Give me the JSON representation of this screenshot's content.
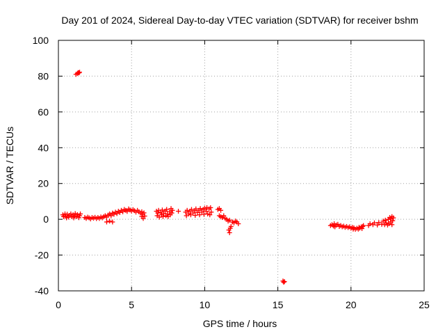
{
  "chart_data": {
    "type": "scatter",
    "title": "Day 201 of 2024, Sidereal Day-to-day VTEC variation (SDTVAR) for receiver bshm",
    "xlabel": "GPS time / hours",
    "ylabel": "SDTVAR / TECUs",
    "xlim": [
      0,
      25
    ],
    "ylim": [
      -40,
      100
    ],
    "xticks": [
      0,
      5,
      10,
      15,
      20,
      25
    ],
    "yticks": [
      -40,
      -20,
      0,
      20,
      40,
      60,
      80,
      100
    ],
    "grid": true,
    "marker": "plus",
    "series": [
      {
        "name": "SDTVAR",
        "color": "#ff0000",
        "points": [
          [
            1.2,
            81.0
          ],
          [
            1.3,
            81.5
          ],
          [
            1.35,
            82.0
          ],
          [
            1.4,
            81.8
          ],
          [
            1.45,
            82.2
          ],
          [
            0.3,
            2.5
          ],
          [
            0.35,
            1.5
          ],
          [
            0.45,
            3.0
          ],
          [
            0.5,
            1.8
          ],
          [
            0.55,
            0.8
          ],
          [
            0.6,
            2.8
          ],
          [
            0.7,
            1.2
          ],
          [
            0.75,
            2.2
          ],
          [
            0.85,
            3.0
          ],
          [
            0.9,
            1.5
          ],
          [
            1.0,
            2.5
          ],
          [
            1.05,
            0.8
          ],
          [
            1.1,
            1.8
          ],
          [
            1.15,
            3.2
          ],
          [
            1.25,
            1.5
          ],
          [
            1.3,
            2.6
          ],
          [
            1.4,
            0.9
          ],
          [
            1.45,
            2.0
          ],
          [
            1.5,
            3.0
          ],
          [
            1.8,
            1.0
          ],
          [
            1.9,
            0.5
          ],
          [
            2.0,
            1.2
          ],
          [
            2.1,
            0.8
          ],
          [
            2.2,
            0.2
          ],
          [
            2.3,
            1.0
          ],
          [
            2.4,
            0.6
          ],
          [
            2.5,
            1.1
          ],
          [
            2.6,
            0.4
          ],
          [
            2.7,
            1.0
          ],
          [
            2.8,
            0.5
          ],
          [
            2.9,
            1.3
          ],
          [
            3.0,
            0.8
          ],
          [
            3.1,
            1.5
          ],
          [
            3.2,
            2.0
          ],
          [
            3.3,
            1.2
          ],
          [
            3.3,
            -1.5
          ],
          [
            3.4,
            2.4
          ],
          [
            3.5,
            3.0
          ],
          [
            3.5,
            -1.0
          ],
          [
            3.6,
            2.0
          ],
          [
            3.7,
            3.5
          ],
          [
            3.7,
            -1.5
          ],
          [
            3.8,
            2.8
          ],
          [
            3.9,
            4.0
          ],
          [
            4.0,
            3.2
          ],
          [
            4.1,
            4.5
          ],
          [
            4.2,
            3.8
          ],
          [
            4.3,
            5.0
          ],
          [
            4.4,
            4.2
          ],
          [
            4.5,
            5.5
          ],
          [
            4.6,
            5.0
          ],
          [
            4.7,
            4.4
          ],
          [
            4.8,
            5.8
          ],
          [
            4.9,
            5.2
          ],
          [
            5.0,
            4.6
          ],
          [
            5.1,
            5.4
          ],
          [
            5.2,
            4.8
          ],
          [
            5.3,
            4.0
          ],
          [
            5.4,
            5.0
          ],
          [
            5.5,
            4.2
          ],
          [
            5.6,
            3.5
          ],
          [
            5.7,
            4.2
          ],
          [
            5.7,
            1.5
          ],
          [
            5.75,
            2.8
          ],
          [
            5.8,
            0.5
          ],
          [
            5.85,
            3.6
          ],
          [
            5.9,
            1.8
          ],
          [
            6.7,
            4.5
          ],
          [
            6.75,
            2.0
          ],
          [
            6.8,
            3.5
          ],
          [
            6.85,
            5.0
          ],
          [
            6.9,
            1.2
          ],
          [
            7.0,
            4.0
          ],
          [
            7.05,
            2.5
          ],
          [
            7.1,
            5.2
          ],
          [
            7.15,
            1.5
          ],
          [
            7.2,
            3.2
          ],
          [
            7.3,
            4.6
          ],
          [
            7.35,
            2.0
          ],
          [
            7.4,
            5.5
          ],
          [
            7.45,
            3.0
          ],
          [
            7.5,
            1.5
          ],
          [
            7.6,
            4.2
          ],
          [
            7.65,
            2.5
          ],
          [
            7.7,
            6.0
          ],
          [
            7.75,
            3.5
          ],
          [
            7.8,
            5.0
          ],
          [
            8.2,
            4.5
          ],
          [
            8.7,
            4.0
          ],
          [
            8.75,
            2.0
          ],
          [
            8.8,
            5.0
          ],
          [
            8.9,
            3.0
          ],
          [
            9.0,
            4.5
          ],
          [
            9.05,
            2.5
          ],
          [
            9.1,
            5.5
          ],
          [
            9.2,
            3.5
          ],
          [
            9.3,
            4.8
          ],
          [
            9.35,
            2.2
          ],
          [
            9.4,
            5.8
          ],
          [
            9.5,
            3.8
          ],
          [
            9.6,
            5.0
          ],
          [
            9.65,
            2.5
          ],
          [
            9.7,
            6.0
          ],
          [
            9.8,
            4.0
          ],
          [
            9.9,
            5.5
          ],
          [
            9.95,
            2.8
          ],
          [
            10.0,
            6.2
          ],
          [
            10.1,
            4.5
          ],
          [
            10.15,
            6.5
          ],
          [
            10.2,
            3.0
          ],
          [
            10.3,
            5.8
          ],
          [
            10.35,
            2.5
          ],
          [
            10.4,
            6.5
          ],
          [
            10.45,
            4.0
          ],
          [
            10.9,
            5.5
          ],
          [
            11.0,
            6.0
          ],
          [
            11.1,
            5.0
          ],
          [
            11.0,
            2.0
          ],
          [
            11.1,
            1.5
          ],
          [
            11.2,
            1.0
          ],
          [
            11.3,
            2.0
          ],
          [
            11.4,
            0.5
          ],
          [
            11.5,
            0.0
          ],
          [
            11.6,
            -1.0
          ],
          [
            11.7,
            -0.5
          ],
          [
            11.65,
            -6.0
          ],
          [
            11.7,
            -7.5
          ],
          [
            11.75,
            -5.0
          ],
          [
            11.8,
            -4.0
          ],
          [
            11.9,
            -1.5
          ],
          [
            12.0,
            -2.0
          ],
          [
            12.1,
            -1.0
          ],
          [
            12.2,
            -1.5
          ],
          [
            12.3,
            -2.5
          ],
          [
            15.35,
            -34.5
          ],
          [
            15.4,
            -35.2
          ],
          [
            15.45,
            -34.8
          ],
          [
            18.6,
            -3.5
          ],
          [
            18.7,
            -3.0
          ],
          [
            18.8,
            -3.8
          ],
          [
            18.85,
            -2.5
          ],
          [
            18.9,
            -4.2
          ],
          [
            19.0,
            -3.2
          ],
          [
            19.1,
            -2.8
          ],
          [
            19.2,
            -4.0
          ],
          [
            19.3,
            -3.5
          ],
          [
            19.4,
            -4.2
          ],
          [
            19.5,
            -3.8
          ],
          [
            19.6,
            -4.5
          ],
          [
            19.7,
            -4.0
          ],
          [
            19.8,
            -4.6
          ],
          [
            19.9,
            -4.2
          ],
          [
            20.0,
            -5.0
          ],
          [
            20.1,
            -4.5
          ],
          [
            20.15,
            -5.5
          ],
          [
            20.2,
            -4.8
          ],
          [
            20.3,
            -5.6
          ],
          [
            20.4,
            -5.0
          ],
          [
            20.5,
            -5.5
          ],
          [
            20.55,
            -4.5
          ],
          [
            20.6,
            -5.0
          ],
          [
            20.7,
            -4.2
          ],
          [
            20.75,
            -5.2
          ],
          [
            20.8,
            -4.0
          ],
          [
            20.85,
            -3.5
          ],
          [
            21.2,
            -3.5
          ],
          [
            21.3,
            -2.5
          ],
          [
            21.5,
            -3.0
          ],
          [
            21.6,
            -2.0
          ],
          [
            21.8,
            -3.2
          ],
          [
            21.9,
            -1.8
          ],
          [
            22.1,
            -2.8
          ],
          [
            22.2,
            -1.0
          ],
          [
            22.3,
            -3.0
          ],
          [
            22.35,
            -0.5
          ],
          [
            22.4,
            -2.0
          ],
          [
            22.5,
            -3.2
          ],
          [
            22.55,
            0.0
          ],
          [
            22.6,
            -2.5
          ],
          [
            22.65,
            1.0
          ],
          [
            22.7,
            -1.5
          ],
          [
            22.75,
            0.5
          ],
          [
            22.8,
            -3.0
          ],
          [
            22.8,
            1.5
          ],
          [
            22.85,
            -0.8
          ],
          [
            22.9,
            0.8
          ]
        ]
      }
    ]
  }
}
